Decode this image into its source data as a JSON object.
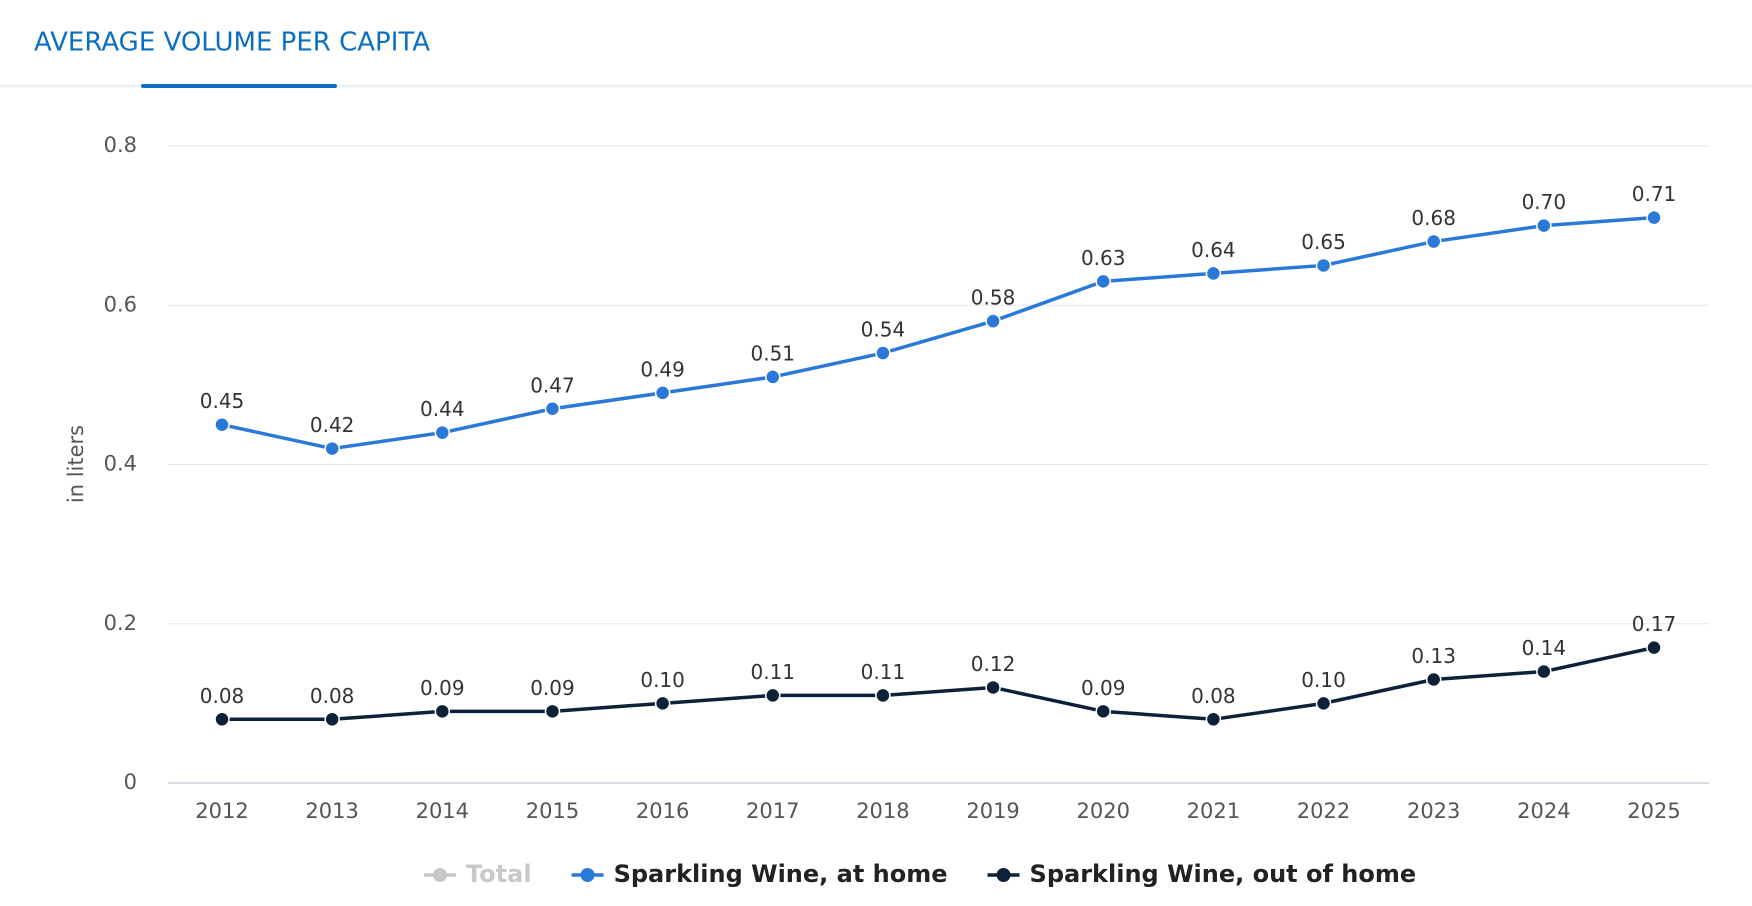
{
  "chart_data": {
    "type": "line",
    "title": "AVERAGE VOLUME PER CAPITA",
    "ylabel": "in liters",
    "categories": [
      "2012",
      "2013",
      "2014",
      "2015",
      "2016",
      "2017",
      "2018",
      "2019",
      "2020",
      "2021",
      "2022",
      "2023",
      "2024",
      "2025"
    ],
    "series": [
      {
        "name": "Sparkling Wine, at home",
        "color": "#2a78d8",
        "values": [
          0.45,
          0.42,
          0.44,
          0.47,
          0.49,
          0.51,
          0.54,
          0.58,
          0.63,
          0.64,
          0.65,
          0.68,
          0.7,
          0.71
        ],
        "value_labels": [
          "0.45",
          "0.42",
          "0.44",
          "0.47",
          "0.49",
          "0.51",
          "0.54",
          "0.58",
          "0.63",
          "0.64",
          "0.65",
          "0.68",
          "0.70",
          "0.71"
        ]
      },
      {
        "name": "Sparkling Wine, out of home",
        "color": "#0d2238",
        "values": [
          0.08,
          0.08,
          0.09,
          0.09,
          0.1,
          0.11,
          0.11,
          0.12,
          0.09,
          0.08,
          0.1,
          0.13,
          0.14,
          0.17
        ],
        "value_labels": [
          "0.08",
          "0.08",
          "0.09",
          "0.09",
          "0.10",
          "0.11",
          "0.11",
          "0.12",
          "0.09",
          "0.08",
          "0.10",
          "0.13",
          "0.14",
          "0.17"
        ]
      }
    ],
    "hidden_series": [
      {
        "name": "Total",
        "color": "#c8c8c8"
      }
    ],
    "ylim": [
      0,
      0.8
    ],
    "yticks": [
      0,
      0.2,
      0.4,
      0.6,
      0.8
    ],
    "grid": true
  }
}
